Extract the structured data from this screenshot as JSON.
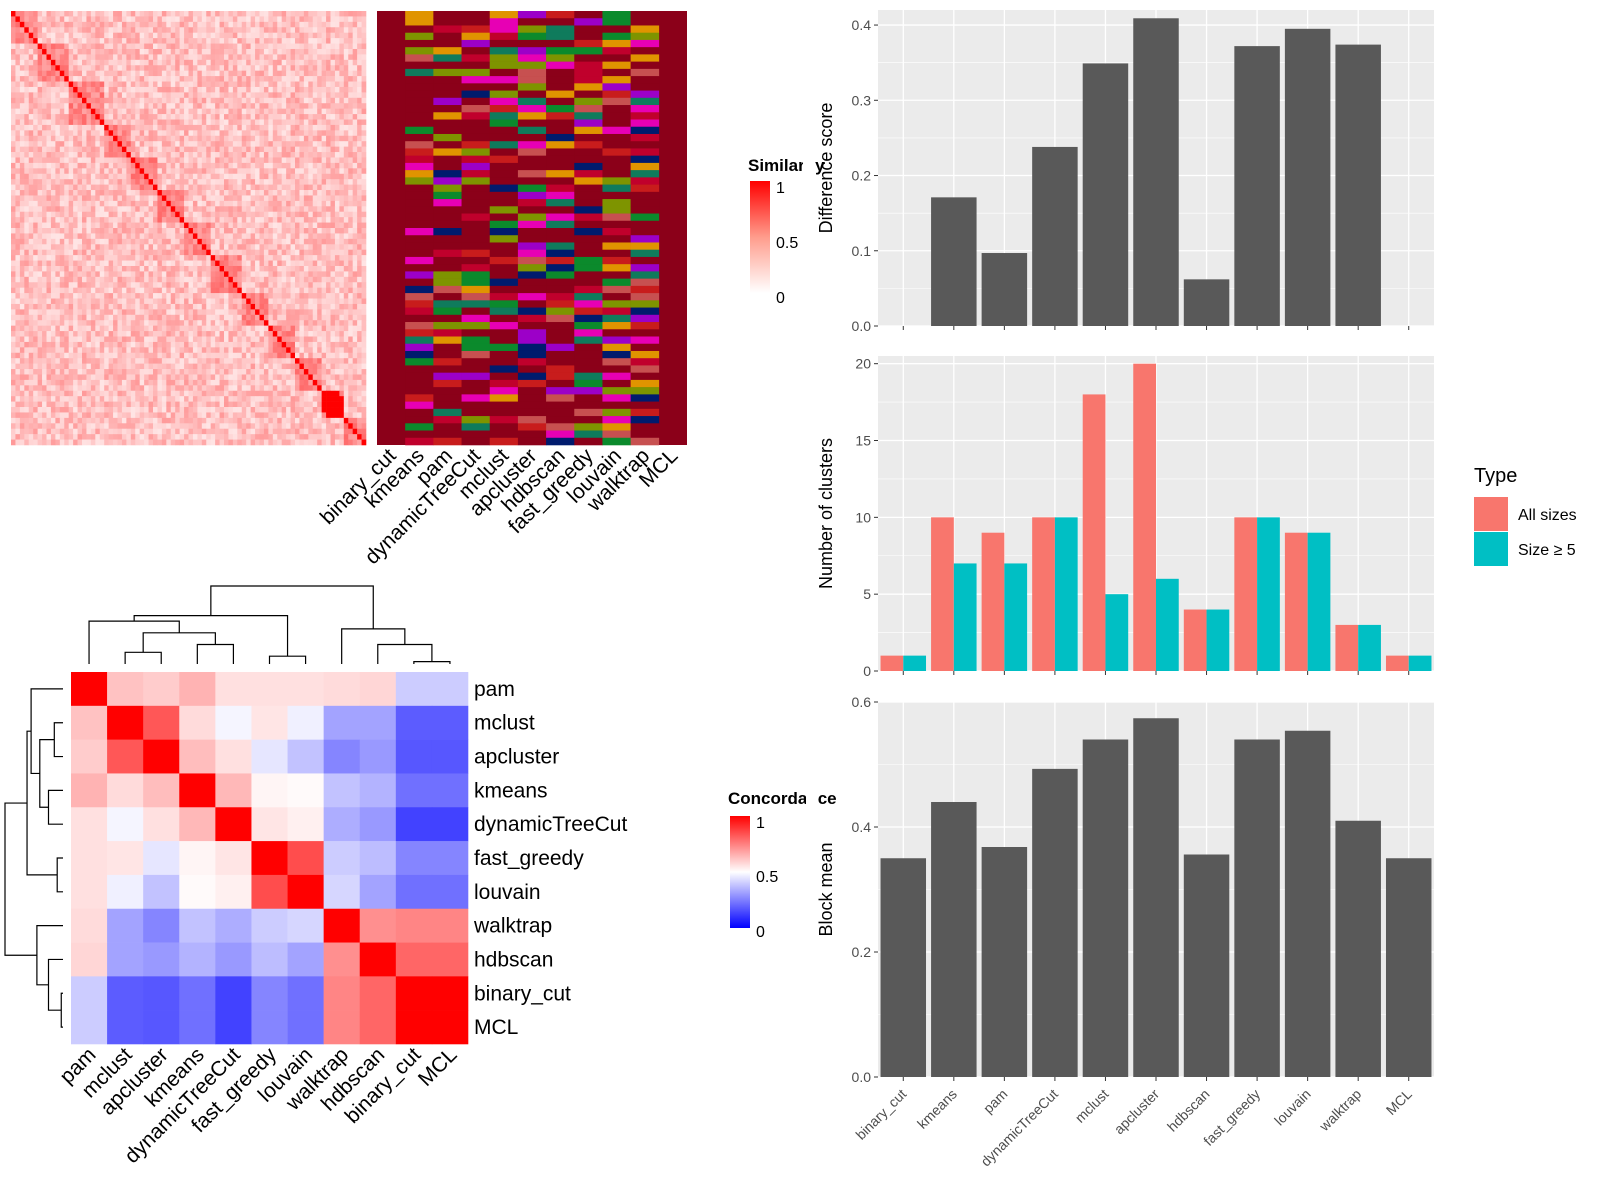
{
  "chart_data": [
    {
      "type": "heatmap",
      "panel": "similarity",
      "legend_title": "Similarity",
      "legend_ticks": [
        "1",
        "0.5",
        "0"
      ],
      "column_labels": [
        "binary_cut",
        "kmeans",
        "pam",
        "dynamicTreeCut",
        "mclust",
        "apcluster",
        "hdbscan",
        "fast_greedy",
        "louvain",
        "walktrap",
        "MCL"
      ],
      "colors": {
        "high": "#ff0000",
        "low": "#ffffff"
      }
    },
    {
      "type": "heatmap",
      "panel": "concordance",
      "legend_title": "Concordance",
      "legend_ticks": [
        "1",
        "0.5",
        "0"
      ],
      "labels": [
        "pam",
        "mclust",
        "apcluster",
        "kmeans",
        "dynamicTreeCut",
        "fast_greedy",
        "louvain",
        "walktrap",
        "hdbscan",
        "binary_cut",
        "MCL"
      ],
      "values": [
        [
          1.0,
          0.62,
          0.6,
          0.65,
          0.56,
          0.56,
          0.56,
          0.57,
          0.58,
          0.4,
          0.4
        ],
        [
          0.62,
          1.0,
          0.83,
          0.57,
          0.48,
          0.55,
          0.47,
          0.32,
          0.32,
          0.18,
          0.18
        ],
        [
          0.6,
          0.83,
          1.0,
          0.63,
          0.56,
          0.45,
          0.38,
          0.26,
          0.3,
          0.17,
          0.17
        ],
        [
          0.65,
          0.57,
          0.63,
          1.0,
          0.64,
          0.52,
          0.51,
          0.38,
          0.35,
          0.22,
          0.22
        ],
        [
          0.56,
          0.48,
          0.56,
          0.64,
          1.0,
          0.55,
          0.53,
          0.34,
          0.3,
          0.13,
          0.13
        ],
        [
          0.56,
          0.55,
          0.45,
          0.52,
          0.55,
          1.0,
          0.85,
          0.4,
          0.37,
          0.26,
          0.26
        ],
        [
          0.56,
          0.47,
          0.38,
          0.51,
          0.53,
          0.85,
          1.0,
          0.42,
          0.32,
          0.22,
          0.22
        ],
        [
          0.57,
          0.32,
          0.26,
          0.38,
          0.34,
          0.4,
          0.42,
          1.0,
          0.72,
          0.74,
          0.74
        ],
        [
          0.58,
          0.32,
          0.3,
          0.35,
          0.3,
          0.37,
          0.32,
          0.72,
          1.0,
          0.8,
          0.8
        ],
        [
          0.4,
          0.18,
          0.17,
          0.22,
          0.13,
          0.26,
          0.22,
          0.74,
          0.8,
          1.0,
          1.0
        ],
        [
          0.4,
          0.18,
          0.17,
          0.22,
          0.13,
          0.26,
          0.22,
          0.74,
          0.8,
          1.0,
          1.0
        ]
      ],
      "colors": {
        "high": "#ff0000",
        "mid": "#ffffff",
        "low": "#0000ff"
      }
    },
    {
      "type": "bar",
      "panel": "difference",
      "ylabel": "Difference score",
      "categories": [
        "binary_cut",
        "kmeans",
        "pam",
        "dynamicTreeCut",
        "mclust",
        "apcluster",
        "hdbscan",
        "fast_greedy",
        "louvain",
        "walktrap",
        "MCL"
      ],
      "values": [
        0.0,
        0.171,
        0.097,
        0.238,
        0.349,
        0.409,
        0.062,
        0.372,
        0.395,
        0.374,
        0.0
      ],
      "ylim": [
        0,
        0.42
      ],
      "yticks": [
        0.0,
        0.1,
        0.2,
        0.3,
        0.4
      ],
      "ytick_labels": [
        "0.0",
        "0.1",
        "0.2",
        "0.3",
        "0.4"
      ]
    },
    {
      "type": "bar",
      "panel": "clusters",
      "ylabel": "Number of clusters",
      "categories": [
        "binary_cut",
        "kmeans",
        "pam",
        "dynamicTreeCut",
        "mclust",
        "apcluster",
        "hdbscan",
        "fast_greedy",
        "louvain",
        "walktrap",
        "MCL"
      ],
      "series": [
        {
          "name": "All sizes",
          "values": [
            1,
            10,
            9,
            10,
            18,
            20,
            4,
            10,
            9,
            3,
            1
          ],
          "color": "#f8766d"
        },
        {
          "name": "Size ≥ 5",
          "values": [
            1,
            7,
            7,
            10,
            5,
            6,
            4,
            10,
            9,
            3,
            1
          ],
          "color": "#00bfc4"
        }
      ],
      "legend_title": "Type",
      "ylim": [
        0,
        20.5
      ],
      "yticks": [
        0,
        5,
        10,
        15,
        20
      ],
      "ytick_labels": [
        "0",
        "5",
        "10",
        "15",
        "20"
      ]
    },
    {
      "type": "bar",
      "panel": "blockmean",
      "ylabel": "Block mean",
      "categories": [
        "binary_cut",
        "kmeans",
        "pam",
        "dynamicTreeCut",
        "mclust",
        "apcluster",
        "hdbscan",
        "fast_greedy",
        "louvain",
        "walktrap",
        "MCL"
      ],
      "values": [
        0.35,
        0.44,
        0.368,
        0.493,
        0.54,
        0.574,
        0.356,
        0.54,
        0.554,
        0.41,
        0.35
      ],
      "ylim": [
        0,
        0.6
      ],
      "yticks": [
        0.0,
        0.2,
        0.4,
        0.6
      ],
      "ytick_labels": [
        "0.0",
        "0.2",
        "0.4",
        "0.6"
      ]
    }
  ]
}
